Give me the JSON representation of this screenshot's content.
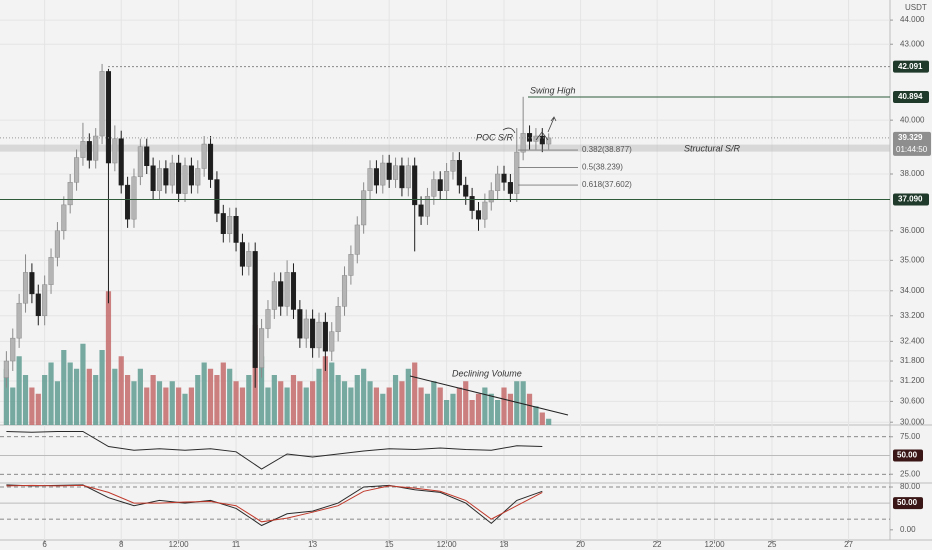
{
  "chart_data": [
    {
      "type": "candlestick",
      "unit": "USDT",
      "log_scale": true,
      "grid": true,
      "xlim": [
        -28,
        530
      ],
      "xticks": [
        {
          "value": 0,
          "label": "6"
        },
        {
          "value": 48,
          "label": "8"
        },
        {
          "value": 84,
          "label": "12:00"
        },
        {
          "value": 120,
          "label": "11"
        },
        {
          "value": 168,
          "label": "13"
        },
        {
          "value": 216,
          "label": "15"
        },
        {
          "value": 252,
          "label": "12:00"
        },
        {
          "value": 288,
          "label": "18"
        },
        {
          "value": 336,
          "label": "20"
        },
        {
          "value": 384,
          "label": "22"
        },
        {
          "value": 420,
          "label": "12:00"
        },
        {
          "value": 456,
          "label": "25"
        },
        {
          "value": 504,
          "label": "27"
        }
      ],
      "ylim": [
        29.92,
        44.85
      ],
      "yticks": [
        {
          "value": 44,
          "label": "44.000"
        },
        {
          "value": 43,
          "label": "43.000"
        },
        {
          "value": 40,
          "label": "40.000"
        },
        {
          "value": 38,
          "label": "38.000"
        },
        {
          "value": 36,
          "label": "36.000"
        },
        {
          "value": 35,
          "label": "35.000"
        },
        {
          "value": 34,
          "label": "34.000"
        },
        {
          "value": 33.2,
          "label": "33.200"
        },
        {
          "value": 32.4,
          "label": "32.400"
        },
        {
          "value": 31.8,
          "label": "31.800"
        },
        {
          "value": 31.2,
          "label": "31.200"
        },
        {
          "value": 30.6,
          "label": "30.600"
        },
        {
          "value": 30,
          "label": "30.000"
        }
      ],
      "x": [
        -24,
        -20,
        -16,
        -12,
        -8,
        -4,
        0,
        4,
        8,
        12,
        16,
        20,
        24,
        28,
        32,
        36,
        40,
        44,
        48,
        52,
        56,
        60,
        64,
        68,
        72,
        76,
        80,
        84,
        88,
        92,
        96,
        100,
        104,
        108,
        112,
        116,
        120,
        124,
        128,
        132,
        136,
        140,
        144,
        148,
        152,
        156,
        160,
        164,
        168,
        172,
        176,
        180,
        184,
        188,
        192,
        196,
        200,
        204,
        208,
        212,
        216,
        220,
        224,
        228,
        232,
        236,
        240,
        244,
        248,
        252,
        256,
        260,
        264,
        268,
        272,
        276,
        280,
        284,
        288,
        292,
        296,
        300,
        304,
        308,
        312,
        316
      ],
      "open": [
        31.3,
        31.8,
        32.5,
        33.6,
        34.6,
        33.9,
        33.2,
        34.2,
        35.1,
        36.0,
        36.9,
        37.7,
        38.6,
        39.2,
        38.5,
        39.4,
        41.9,
        38.4,
        39.3,
        37.6,
        36.4,
        37.9,
        39.0,
        38.3,
        37.4,
        38.2,
        37.6,
        38.4,
        37.3,
        38.3,
        37.6,
        38.2,
        39.1,
        37.8,
        36.6,
        35.9,
        36.5,
        35.6,
        34.8,
        35.3,
        31.6,
        32.8,
        33.4,
        34.3,
        33.5,
        34.6,
        33.4,
        32.5,
        33.1,
        32.2,
        33.0,
        32.1,
        32.7,
        33.5,
        34.5,
        35.2,
        36.2,
        37.4,
        38.2,
        37.6,
        38.4,
        37.8,
        38.3,
        37.5,
        38.3,
        36.9,
        36.5,
        37.2,
        37.8,
        37.4,
        38.1,
        38.5,
        37.6,
        37.2,
        36.7,
        36.4,
        37.0,
        37.4,
        38.0,
        37.7,
        37.3,
        38.8,
        39.5,
        39.2,
        39.4,
        39.1
      ],
      "high": [
        32.1,
        32.8,
        33.9,
        35.2,
        34.9,
        34.2,
        34.5,
        35.4,
        36.3,
        37.2,
        38.0,
        38.9,
        39.9,
        39.5,
        39.7,
        42.2,
        42.0,
        39.8,
        39.6,
        37.9,
        38.2,
        39.3,
        39.3,
        38.6,
        38.5,
        38.5,
        38.7,
        38.7,
        38.6,
        38.6,
        38.5,
        39.4,
        39.4,
        38.1,
        36.9,
        36.8,
        36.8,
        35.9,
        35.6,
        35.6,
        33.1,
        33.7,
        34.6,
        34.6,
        35.0,
        34.9,
        33.7,
        33.4,
        33.4,
        33.3,
        33.3,
        33.0,
        33.8,
        34.8,
        35.5,
        36.5,
        37.7,
        38.5,
        38.5,
        38.7,
        38.7,
        38.6,
        38.6,
        38.6,
        38.6,
        37.2,
        37.5,
        38.1,
        38.1,
        38.4,
        38.8,
        38.8,
        37.9,
        37.5,
        37.0,
        37.3,
        37.7,
        38.3,
        38.3,
        38.0,
        39.7,
        40.9,
        39.8,
        39.7,
        39.7,
        39.5
      ],
      "low": [
        31.0,
        31.5,
        32.2,
        33.3,
        33.6,
        32.9,
        32.9,
        33.9,
        34.8,
        35.7,
        36.6,
        37.4,
        38.3,
        38.2,
        38.2,
        39.1,
        33.6,
        38.1,
        37.3,
        36.1,
        36.1,
        37.6,
        38.0,
        37.1,
        37.1,
        37.3,
        37.3,
        37.0,
        37.0,
        37.3,
        37.3,
        37.9,
        37.5,
        36.3,
        35.6,
        35.6,
        35.3,
        34.5,
        34.5,
        31.0,
        31.3,
        32.5,
        33.1,
        33.2,
        33.2,
        33.1,
        32.2,
        32.2,
        31.9,
        31.9,
        31.5,
        31.8,
        32.4,
        33.2,
        34.2,
        34.9,
        35.9,
        37.1,
        37.3,
        37.3,
        37.5,
        37.5,
        37.2,
        37.2,
        35.3,
        36.2,
        36.2,
        36.9,
        37.1,
        37.1,
        37.8,
        37.3,
        36.9,
        36.4,
        36.0,
        36.1,
        36.7,
        37.1,
        37.4,
        37.0,
        37.0,
        38.5,
        38.9,
        38.9,
        38.8,
        38.9
      ],
      "close": [
        31.8,
        32.5,
        33.6,
        34.6,
        33.9,
        33.2,
        34.2,
        35.1,
        36.0,
        36.9,
        37.7,
        38.6,
        39.2,
        38.5,
        39.4,
        41.9,
        38.4,
        39.3,
        37.6,
        36.4,
        37.9,
        39.0,
        38.3,
        37.4,
        38.2,
        37.6,
        38.4,
        37.3,
        38.3,
        37.6,
        38.2,
        39.1,
        37.8,
        36.6,
        35.9,
        36.5,
        35.6,
        34.8,
        35.3,
        31.6,
        32.8,
        33.4,
        34.3,
        33.5,
        34.6,
        33.4,
        32.5,
        33.1,
        32.2,
        33.0,
        32.1,
        32.7,
        33.5,
        34.5,
        35.2,
        36.2,
        37.4,
        38.2,
        37.6,
        38.4,
        37.8,
        38.3,
        37.5,
        38.3,
        36.9,
        36.5,
        37.2,
        37.8,
        37.4,
        38.1,
        38.5,
        37.6,
        37.2,
        36.7,
        36.4,
        37.0,
        37.4,
        38.0,
        37.7,
        37.3,
        38.8,
        39.5,
        39.2,
        39.4,
        39.1,
        39.33
      ],
      "up_color": "#b4b4b4",
      "down_color": "#1e1e1e",
      "volume": {
        "ylim": [
          0,
          100
        ],
        "up_color": "#5f9c92",
        "down_color": "#c46a6a",
        "values": [
          45,
          30,
          55,
          40,
          30,
          25,
          40,
          50,
          35,
          60,
          50,
          45,
          65,
          45,
          40,
          60,
          107,
          45,
          55,
          40,
          35,
          45,
          30,
          40,
          35,
          30,
          35,
          30,
          25,
          30,
          40,
          50,
          45,
          40,
          50,
          45,
          35,
          30,
          40,
          80,
          55,
          30,
          40,
          35,
          30,
          40,
          35,
          30,
          35,
          45,
          55,
          50,
          40,
          35,
          30,
          40,
          45,
          35,
          30,
          25,
          30,
          40,
          35,
          45,
          50,
          30,
          25,
          35,
          30,
          20,
          25,
          30,
          35,
          20,
          25,
          30,
          25,
          20,
          30,
          25,
          35,
          35,
          25,
          15,
          10,
          5
        ]
      },
      "levels": [
        42.091,
        40.894,
        {
          "value": 37.09,
          "label": "37.090"
        }
      ],
      "last_price": 39.329,
      "countdown": "01:44:50",
      "band": [
        38.82,
        39.08
      ],
      "fib": [
        {
          "value": 38.877,
          "label": "0.382(38.877)"
        },
        {
          "value": 38.239,
          "label": "0.5(38.239)"
        },
        {
          "value": 37.602,
          "label": "0.618(37.602)"
        }
      ],
      "annotations": {
        "swing_high": "Swing High",
        "poc": "POC S/R",
        "structural": "Structural S/R",
        "declining": "Declining Volume"
      }
    },
    {
      "type": "line",
      "color": "#2a2a2a",
      "ylim": [
        13.3,
        90.7
      ],
      "yticks": [
        {
          "value": 75,
          "label": "75.00"
        },
        {
          "value": 25,
          "label": "25.00"
        }
      ],
      "midline": {
        "value": 50,
        "label": "50.00"
      },
      "bands": [
        75,
        25
      ],
      "x": [
        -24,
        -8,
        8,
        24,
        40,
        56,
        72,
        88,
        104,
        120,
        136,
        152,
        168,
        184,
        200,
        216,
        232,
        248,
        264,
        280,
        296,
        312
      ],
      "values": [
        82,
        81,
        82,
        82,
        62,
        57,
        59,
        57,
        59,
        55,
        32,
        52,
        48,
        52,
        56,
        59,
        58,
        60,
        58,
        57,
        63,
        62
      ]
    },
    {
      "type": "line",
      "ylim": [
        -19,
        87.5
      ],
      "yticks": [
        {
          "value": 80,
          "label": "80.00"
        },
        {
          "value": 0,
          "label": "0.00"
        }
      ],
      "midline": {
        "value": 50,
        "label": "50.00"
      },
      "bands": [
        80,
        20
      ],
      "x": [
        -24,
        -8,
        8,
        24,
        40,
        56,
        72,
        88,
        104,
        120,
        136,
        152,
        168,
        184,
        200,
        216,
        232,
        248,
        264,
        280,
        296,
        312
      ],
      "series": [
        {
          "color": "#2a2a2a",
          "values": [
            84,
            82,
            83,
            84,
            60,
            45,
            55,
            50,
            55,
            40,
            8,
            30,
            35,
            50,
            80,
            83,
            75,
            70,
            50,
            12,
            55,
            72
          ]
        },
        {
          "color": "#c0392b",
          "values": [
            82,
            83,
            82,
            83,
            70,
            50,
            50,
            52,
            53,
            45,
            15,
            22,
            33,
            45,
            72,
            82,
            78,
            72,
            55,
            20,
            45,
            70
          ]
        }
      ]
    }
  ]
}
